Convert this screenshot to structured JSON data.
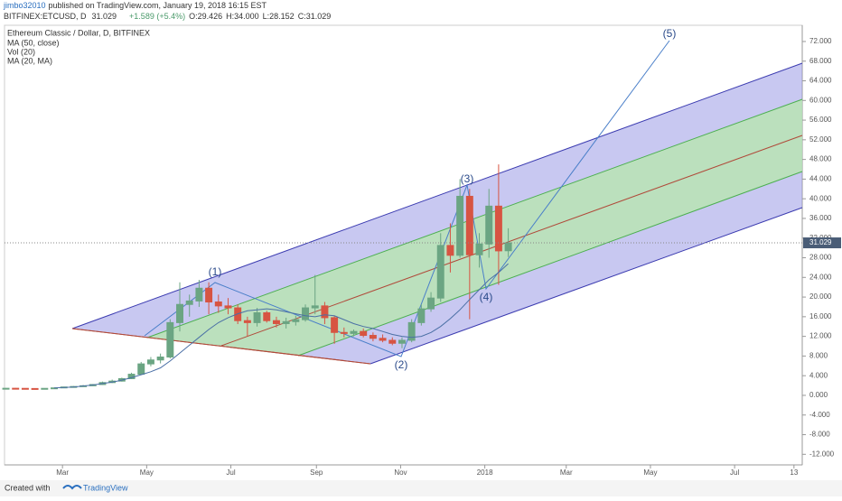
{
  "header": {
    "author": "jimbo32010",
    "published": "published on TradingView.com, January 19, 2018 16:15 EST"
  },
  "quote": {
    "symbol": "BITFINEX:ETCUSD, D",
    "price": "31.029",
    "change": "+1.589 (+5.4%)",
    "open": "O:29.426",
    "high": "H:34.000",
    "low": "L:28.152",
    "close": "C:31.029"
  },
  "chart_data": {
    "type": "candlestick",
    "title": "Ethereum Classic / Dollar, D, BITFINEX",
    "indicators": [
      "Vol (20)",
      "MA (20, MA)"
    ],
    "up_color": "#6ba583",
    "down_color": "#d75442",
    "x": [
      "2017-01-19",
      "2017-01-26",
      "2017-02-02",
      "2017-02-09",
      "2017-02-16",
      "2017-02-23",
      "2017-03-02",
      "2017-03-09",
      "2017-03-16",
      "2017-03-23",
      "2017-03-30",
      "2017-04-06",
      "2017-04-13",
      "2017-04-20",
      "2017-04-27",
      "2017-05-04",
      "2017-05-11",
      "2017-05-18",
      "2017-05-25",
      "2017-06-01",
      "2017-06-08",
      "2017-06-15",
      "2017-06-22",
      "2017-06-29",
      "2017-07-06",
      "2017-07-13",
      "2017-07-20",
      "2017-07-27",
      "2017-08-03",
      "2017-08-10",
      "2017-08-17",
      "2017-08-24",
      "2017-08-31",
      "2017-09-07",
      "2017-09-14",
      "2017-09-21",
      "2017-09-28",
      "2017-10-05",
      "2017-10-12",
      "2017-10-19",
      "2017-10-26",
      "2017-11-02",
      "2017-11-09",
      "2017-11-16",
      "2017-11-23",
      "2017-11-30",
      "2017-12-07",
      "2017-12-14",
      "2017-12-21",
      "2017-12-28",
      "2018-01-04",
      "2018-01-11",
      "2018-01-18"
    ],
    "open": [
      1.4,
      1.44,
      1.42,
      1.39,
      1.35,
      1.42,
      1.52,
      1.7,
      1.8,
      1.95,
      2.2,
      2.6,
      2.9,
      3.4,
      4.3,
      6.4,
      7.2,
      7.8,
      14.8,
      18.5,
      19.2,
      21.8,
      19.0,
      18.2,
      17.8,
      15.2,
      14.8,
      16.8,
      15.2,
      14.6,
      15.0,
      15.4,
      17.8,
      18.2,
      15.8,
      12.8,
      12.6,
      13.0,
      12.2,
      11.6,
      11.2,
      10.6,
      11.2,
      14.8,
      17.6,
      19.8,
      30.5,
      28.5,
      40.5,
      28.6,
      30.8,
      38.5,
      29.426
    ],
    "high": [
      1.48,
      1.5,
      1.46,
      1.44,
      1.45,
      1.56,
      1.75,
      1.9,
      2.1,
      2.3,
      2.8,
      3.2,
      3.6,
      4.6,
      6.8,
      7.8,
      8.5,
      15.5,
      23.0,
      20.5,
      23.5,
      23.0,
      20.5,
      19.8,
      18.5,
      16.0,
      17.8,
      17.2,
      16.0,
      15.8,
      16.2,
      18.5,
      24.5,
      19.0,
      16.2,
      13.8,
      13.4,
      13.6,
      12.8,
      12.4,
      11.8,
      11.8,
      15.5,
      18.5,
      21.0,
      33.0,
      35.0,
      44.0,
      42.0,
      33.0,
      42.0,
      47.0,
      34.0
    ],
    "low": [
      1.36,
      1.4,
      1.36,
      1.3,
      1.32,
      1.4,
      1.48,
      1.62,
      1.75,
      1.9,
      2.1,
      2.5,
      2.8,
      3.3,
      4.2,
      5.9,
      6.5,
      7.5,
      13.0,
      16.0,
      18.0,
      16.5,
      16.8,
      16.5,
      14.5,
      12.0,
      14.0,
      14.8,
      13.8,
      13.6,
      14.2,
      15.0,
      16.5,
      14.5,
      10.5,
      11.8,
      12.0,
      11.8,
      11.0,
      10.8,
      10.2,
      9.6,
      10.8,
      14.2,
      17.0,
      19.0,
      25.0,
      28.0,
      15.5,
      26.0,
      28.0,
      22.5,
      28.152
    ],
    "close": [
      1.44,
      1.42,
      1.39,
      1.35,
      1.42,
      1.52,
      1.7,
      1.8,
      1.95,
      2.2,
      2.6,
      2.9,
      3.4,
      4.3,
      6.4,
      7.2,
      7.8,
      14.8,
      18.5,
      19.2,
      21.8,
      19.0,
      18.2,
      17.8,
      15.2,
      14.8,
      16.8,
      15.2,
      14.6,
      15.0,
      15.4,
      17.8,
      18.2,
      15.8,
      12.8,
      12.6,
      13.0,
      12.2,
      11.6,
      11.2,
      10.6,
      11.2,
      14.8,
      17.6,
      19.8,
      30.5,
      28.5,
      40.5,
      28.6,
      30.8,
      38.5,
      29.4,
      31.029
    ],
    "series": [
      {
        "name": "MA (50, close)",
        "color": "#4a6fa5",
        "values": [
          null,
          null,
          null,
          null,
          null,
          1.5,
          1.6,
          1.7,
          1.9,
          2.1,
          2.4,
          2.7,
          3.1,
          3.6,
          4.2,
          4.8,
          5.6,
          7.0,
          8.6,
          10.2,
          11.8,
          13.4,
          14.8,
          15.8,
          16.6,
          17.2,
          17.4,
          17.6,
          17.4,
          17.0,
          16.6,
          16.2,
          16.0,
          16.4,
          16.2,
          15.4,
          14.6,
          14.0,
          13.6,
          13.0,
          12.4,
          12.0,
          11.8,
          12.0,
          12.8,
          14.0,
          15.6,
          17.4,
          19.5,
          21.5,
          23.5,
          25.0,
          26.8
        ]
      }
    ],
    "last_price": {
      "value": 31.029,
      "label": "31.029"
    },
    "annotations": [
      "(1)",
      "(2)",
      "(3)",
      "(4)",
      "(5)"
    ],
    "xlim": [
      "2017-01-18",
      "2018-08-19"
    ],
    "xticks": [
      {
        "value": "2017-03-01",
        "label": "Mar"
      },
      {
        "value": "2017-05-01",
        "label": "May"
      },
      {
        "value": "2017-07-01",
        "label": "Jul"
      },
      {
        "value": "2017-09-01",
        "label": "Sep"
      },
      {
        "value": "2017-11-01",
        "label": "Nov"
      },
      {
        "value": "2018-01-01",
        "label": "2018"
      },
      {
        "value": "2018-03-01",
        "label": "Mar"
      },
      {
        "value": "2018-05-01",
        "label": "May"
      },
      {
        "value": "2018-07-01",
        "label": "Jul"
      },
      {
        "value": "2018-08-13",
        "label": "13"
      }
    ],
    "ylim": [
      -14.15,
      75.3
    ],
    "yticks": [
      {
        "value": 72,
        "label": "72.000"
      },
      {
        "value": 68,
        "label": "68.000"
      },
      {
        "value": 64,
        "label": "64.000"
      },
      {
        "value": 60,
        "label": "60.000"
      },
      {
        "value": 56,
        "label": "56.000"
      },
      {
        "value": 52,
        "label": "52.000"
      },
      {
        "value": 48,
        "label": "48.000"
      },
      {
        "value": 44,
        "label": "44.000"
      },
      {
        "value": 40,
        "label": "40.000"
      },
      {
        "value": 36,
        "label": "36.000"
      },
      {
        "value": 32,
        "label": "32.000"
      },
      {
        "value": 28,
        "label": "28.000"
      },
      {
        "value": 24,
        "label": "24.000"
      },
      {
        "value": 20,
        "label": "20.000"
      },
      {
        "value": 16,
        "label": "16.000"
      },
      {
        "value": 12,
        "label": "12.000"
      },
      {
        "value": 8,
        "label": "8.000"
      },
      {
        "value": 4,
        "label": "4.000"
      },
      {
        "value": 0,
        "label": "0.000"
      },
      {
        "value": -4,
        "label": "-4.000"
      },
      {
        "value": -8,
        "label": "-8.000"
      },
      {
        "value": -12,
        "label": "-12.000"
      }
    ]
  },
  "footer": {
    "created": "Created with",
    "brand": "TradingView"
  }
}
